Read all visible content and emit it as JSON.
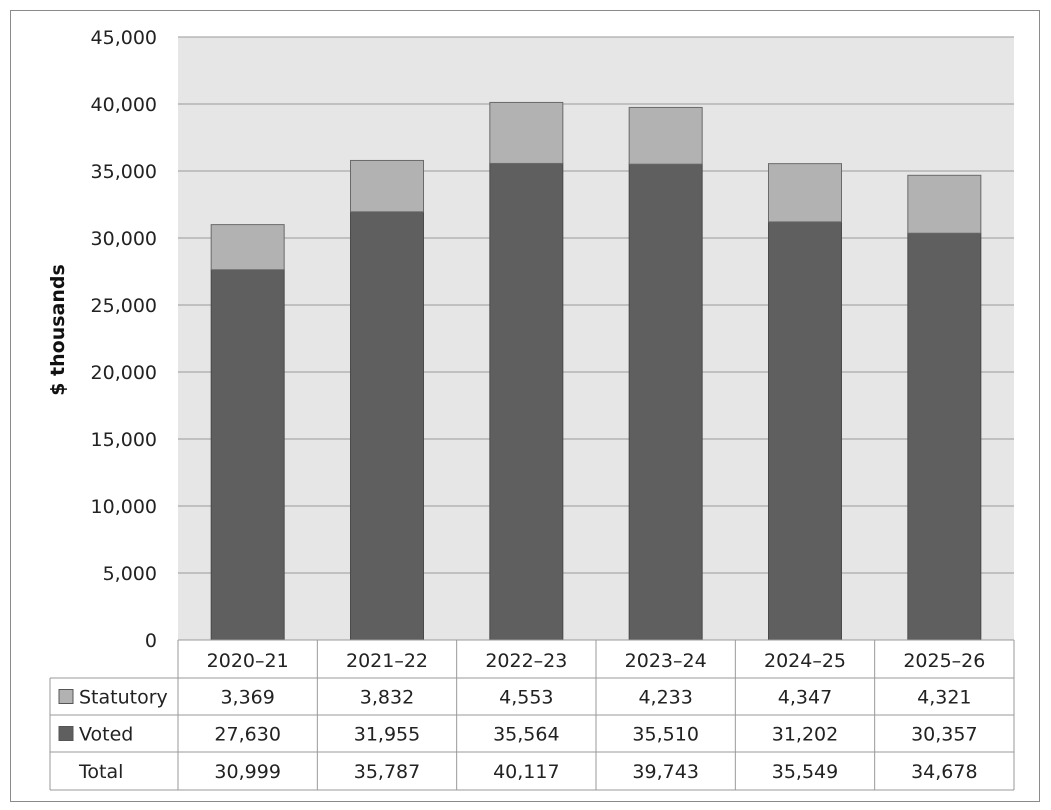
{
  "chart_data": {
    "type": "bar",
    "stacked": true,
    "ylabel": "$ thousands",
    "ylim": [
      0,
      45000
    ],
    "yticks": [
      "0",
      "5,000",
      "10,000",
      "15,000",
      "20,000",
      "25,000",
      "30,000",
      "35,000",
      "40,000",
      "45,000"
    ],
    "categories": [
      "2020–21",
      "2021–22",
      "2022–23",
      "2023–24",
      "2024–25",
      "2025–26"
    ],
    "series": [
      {
        "name": "Statutory",
        "color": "#b2b2b2",
        "labels": [
          "3,369",
          "3,832",
          "4,553",
          "4,233",
          "4,347",
          "4,321"
        ],
        "values": [
          3369,
          3832,
          4553,
          4233,
          4347,
          4321
        ]
      },
      {
        "name": "Voted",
        "color": "#5f5f5f",
        "labels": [
          "27,630",
          "31,955",
          "35,564",
          "35,510",
          "31,202",
          "30,357"
        ],
        "values": [
          27630,
          31955,
          35564,
          35510,
          31202,
          30357
        ]
      }
    ],
    "total": {
      "name": "Total",
      "labels": [
        "30,999",
        "35,787",
        "40,117",
        "39,743",
        "35,549",
        "34,678"
      ]
    },
    "grid": true,
    "plot_background": "#e6e6e6"
  }
}
